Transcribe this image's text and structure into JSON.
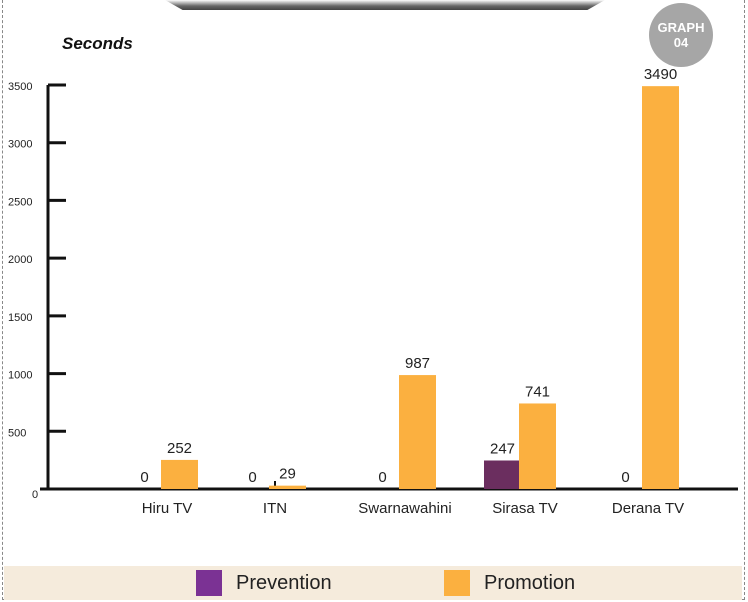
{
  "badge": {
    "line1": "GRAPH",
    "line2": "04"
  },
  "chart_data": {
    "type": "bar",
    "title": "",
    "ylabel": "Seconds",
    "xlabel": "",
    "ylim": [
      0,
      3500
    ],
    "yticks": [
      0,
      500,
      1000,
      1500,
      2000,
      2500,
      3000,
      3500
    ],
    "categories": [
      "Hiru TV",
      "ITN",
      "Swarnawahini",
      "Sirasa TV",
      "Derana TV"
    ],
    "series": [
      {
        "name": "Prevention",
        "color": "#6b2e5f",
        "values": [
          0,
          0,
          0,
          247,
          0
        ]
      },
      {
        "name": "Promotion",
        "color": "#fbb040",
        "values": [
          252,
          29,
          987,
          741,
          3490
        ]
      }
    ],
    "grid": false,
    "legend": "bottom"
  },
  "legend_colors": {
    "prevention_swatch": "#7b3294",
    "promotion_swatch": "#fbb040"
  }
}
